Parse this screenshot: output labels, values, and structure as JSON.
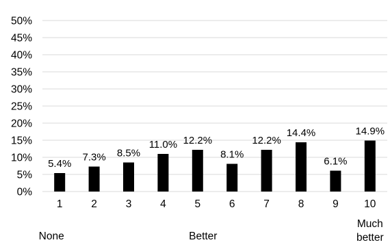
{
  "chart_data": {
    "type": "bar",
    "title": "",
    "xlabel": "",
    "ylabel": "",
    "categories": [
      "1",
      "2",
      "3",
      "4",
      "5",
      "6",
      "7",
      "8",
      "9",
      "10"
    ],
    "values": [
      5.4,
      7.3,
      8.5,
      11.0,
      12.2,
      8.1,
      12.2,
      14.4,
      6.1,
      14.9
    ],
    "data_labels": [
      "5.4%",
      "7.3%",
      "8.5%",
      "11.0%",
      "12.2%",
      "8.1%",
      "12.2%",
      "14.4%",
      "6.1%",
      "14.9%"
    ],
    "ylim": [
      0,
      50
    ],
    "yticks": [
      0,
      5,
      10,
      15,
      20,
      25,
      30,
      35,
      40,
      45,
      50
    ],
    "ytick_labels": [
      "0%",
      "5%",
      "10%",
      "15%",
      "20%",
      "25%",
      "30%",
      "35%",
      "40%",
      "45%",
      "50%"
    ],
    "grid": true,
    "legend": "none",
    "bar_color": "#000000",
    "grid_color": "#d9d9d9",
    "annotations": [
      {
        "category": "1",
        "text": "None"
      },
      {
        "category": "5",
        "text": "Better"
      },
      {
        "category": "10",
        "text": "Much better"
      }
    ]
  }
}
